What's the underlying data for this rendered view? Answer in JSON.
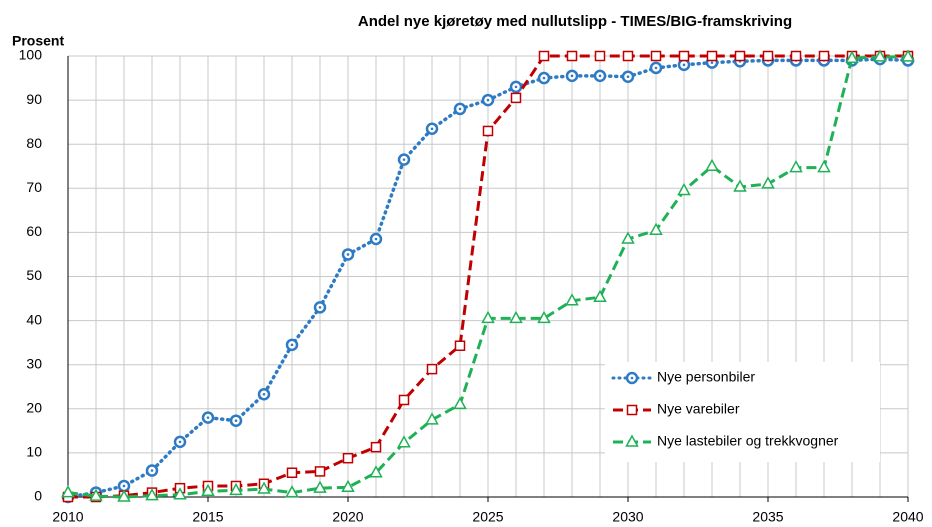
{
  "chart_data": {
    "type": "line",
    "title": "Andel nye kjøretøy med nullutslipp  - TIMES/BIG-framskriving",
    "y_label": "Prosent",
    "x": [
      2010,
      2011,
      2012,
      2013,
      2014,
      2015,
      2016,
      2017,
      2018,
      2019,
      2020,
      2021,
      2022,
      2023,
      2024,
      2025,
      2026,
      2027,
      2028,
      2029,
      2030,
      2031,
      2032,
      2033,
      2034,
      2035,
      2036,
      2037,
      2038,
      2039,
      2040
    ],
    "xlim": [
      2010,
      2040
    ],
    "xticks": [
      2010,
      2015,
      2020,
      2025,
      2030,
      2035,
      2040
    ],
    "ylim": [
      0,
      100
    ],
    "yticks": [
      0,
      10,
      20,
      30,
      40,
      50,
      60,
      70,
      80,
      90,
      100
    ],
    "grid": true,
    "legend": "lower right",
    "series": [
      {
        "name": "Nye personbiler",
        "color": "#2e7bc4",
        "marker": "circle",
        "dash": "dotted",
        "values": [
          0,
          1,
          2.5,
          6,
          12.5,
          18,
          17.3,
          23.3,
          34.5,
          43,
          55,
          58.5,
          76.5,
          83.5,
          88,
          90,
          93,
          95,
          95.5,
          95.5,
          95.3,
          97.3,
          98,
          98.5,
          98.8,
          99,
          99,
          99,
          99,
          99.3,
          99
        ]
      },
      {
        "name": "Nye varebiler",
        "color": "#c00000",
        "marker": "square",
        "dash": "dashed",
        "values": [
          0,
          0,
          0.3,
          1,
          2,
          2.5,
          2.5,
          3,
          5.5,
          5.8,
          8.8,
          11.3,
          22,
          29,
          34.3,
          83,
          90.5,
          100,
          100,
          100,
          100,
          100,
          100,
          100,
          100,
          100,
          100,
          100,
          100,
          100,
          100
        ]
      },
      {
        "name": "Nye lastebiler og trekkvogner",
        "color": "#1fb155",
        "marker": "triangle",
        "dash": "dashed",
        "values": [
          1,
          0.2,
          0,
          0.3,
          0.5,
          1.3,
          1.5,
          1.8,
          1,
          2,
          2.2,
          5.5,
          12.3,
          17.5,
          21,
          40.5,
          40.5,
          40.5,
          44.5,
          45.3,
          58.5,
          60.5,
          69.5,
          75,
          70.3,
          71,
          74.7,
          74.7,
          99.5,
          99.8,
          99.8
        ]
      }
    ]
  }
}
